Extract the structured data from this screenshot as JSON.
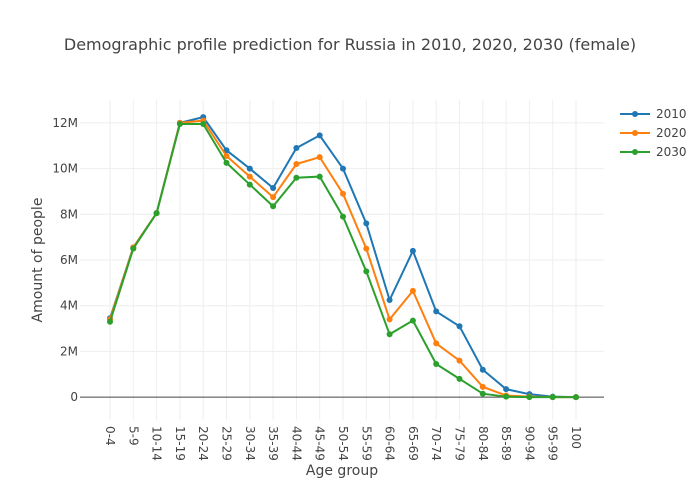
{
  "chart_data": {
    "type": "line",
    "title": "Demographic profile prediction for Russia in 2010, 2020, 2030 (female)",
    "xlabel": "Age group",
    "ylabel": "Amount of people",
    "categories": [
      "0-4",
      "5-9",
      "10-14",
      "15-19",
      "20-24",
      "25-29",
      "30-34",
      "35-39",
      "40-44",
      "45-49",
      "50-54",
      "55-59",
      "60-64",
      "65-69",
      "70-74",
      "75-79",
      "80-84",
      "85-89",
      "90-94",
      "95-99",
      "100"
    ],
    "ylim": [
      -1000000,
      13000000
    ],
    "yticks": [
      0,
      2000000,
      4000000,
      6000000,
      8000000,
      10000000,
      12000000
    ],
    "ytick_labels": [
      "0",
      "2M",
      "4M",
      "6M",
      "8M",
      "10M",
      "12M"
    ],
    "grid": true,
    "legend_position": "top-right",
    "series": [
      {
        "name": "2010",
        "color": "#1f77b4",
        "values": [
          3450000,
          6550000,
          8050000,
          12000000,
          12250000,
          10800000,
          10000000,
          9150000,
          10900000,
          11450000,
          10000000,
          7600000,
          4250000,
          6400000,
          3750000,
          3100000,
          1200000,
          350000,
          130000,
          20000,
          0
        ]
      },
      {
        "name": "2020",
        "color": "#ff7f0e",
        "values": [
          3400000,
          6550000,
          8050000,
          12000000,
          12100000,
          10550000,
          9650000,
          8750000,
          10200000,
          10500000,
          8900000,
          6500000,
          3400000,
          4650000,
          2350000,
          1600000,
          450000,
          70000,
          20000,
          0,
          0
        ]
      },
      {
        "name": "2030",
        "color": "#2ca02c",
        "values": [
          3300000,
          6500000,
          8050000,
          11950000,
          11950000,
          10250000,
          9300000,
          8350000,
          9600000,
          9650000,
          7900000,
          5500000,
          2750000,
          3350000,
          1450000,
          800000,
          150000,
          20000,
          0,
          0,
          0
        ]
      }
    ]
  }
}
